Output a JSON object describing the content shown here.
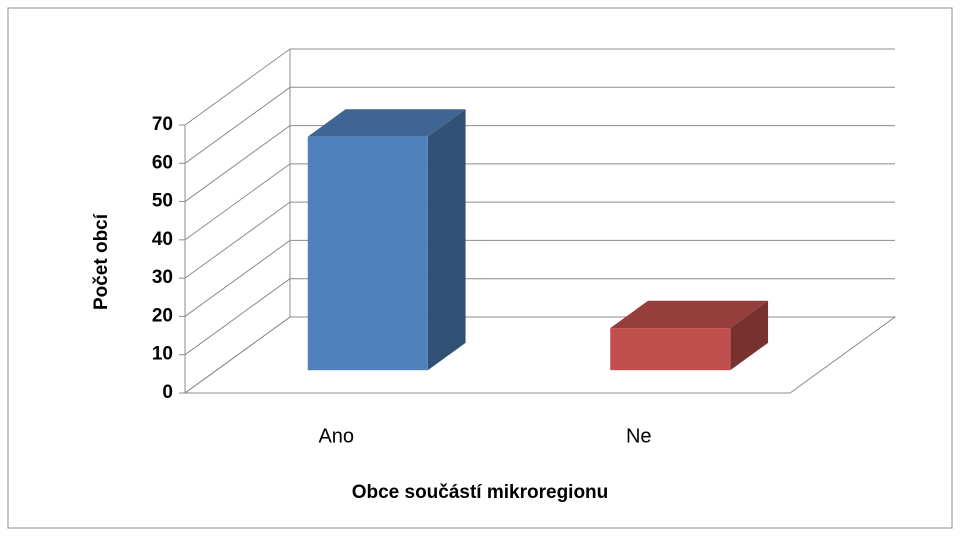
{
  "chart_data": {
    "type": "bar3d",
    "categories": [
      "Ano",
      "Ne"
    ],
    "values": [
      61,
      11
    ],
    "colors": [
      "#4f81bd",
      "#c0504d"
    ],
    "ylabel": "Počet obcí",
    "xlabel": "Obce součástí mikroregionu",
    "ylim": [
      0,
      70
    ],
    "yticks": [
      0,
      10,
      20,
      30,
      40,
      50,
      60,
      70
    ],
    "grid": true
  }
}
